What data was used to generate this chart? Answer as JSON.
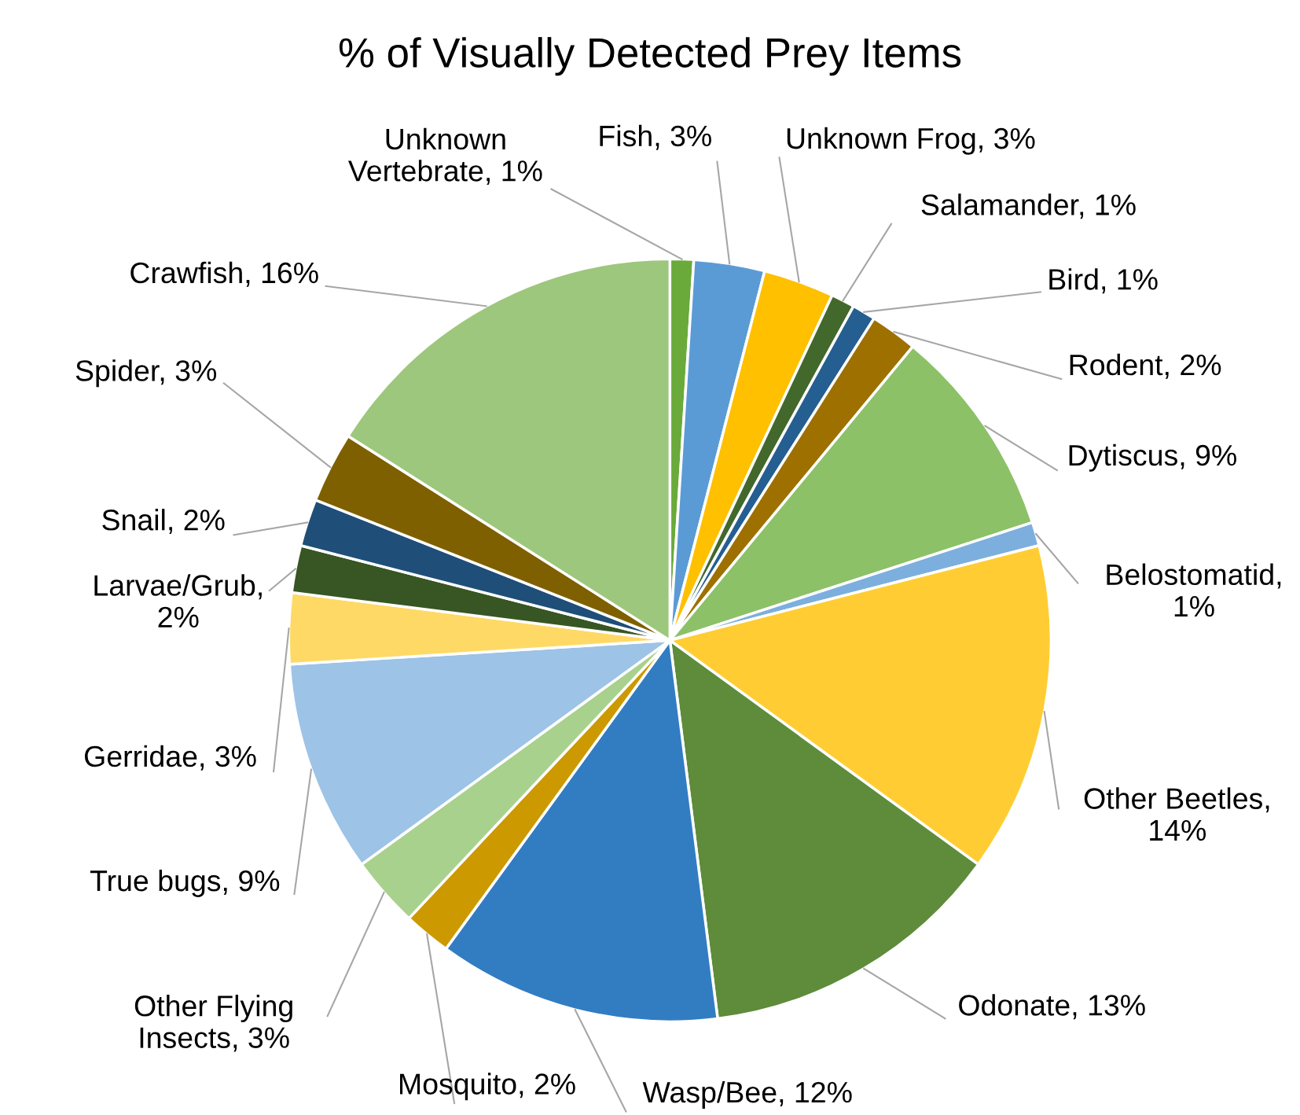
{
  "chart_data": {
    "type": "pie",
    "title": "% of Visually Detected Prey Items",
    "categories": [
      "Unknown\nVertebrate, 1%",
      "Fish, 3%",
      "Unknown Frog, 3%",
      "Salamander, 1%",
      "Bird, 1%",
      "Rodent, 2%",
      "Dytiscus, 9%",
      "Belostomatid,\n1%",
      "Other Beetles,\n14%",
      "Odonate, 13%",
      "Wasp/Bee, 12%",
      "Mosquito, 2%",
      "Other Flying\nInsects, 3%",
      "True bugs, 9%",
      "Gerridae, 3%",
      "Larvae/Grub,\n2%",
      "Snail, 2%",
      "Spider, 3%",
      "Crawfish, 16%"
    ],
    "values": [
      1,
      3,
      3,
      1,
      1,
      2,
      9,
      1,
      14,
      13,
      12,
      2,
      3,
      9,
      3,
      2,
      2,
      3,
      16
    ],
    "colors": [
      "#6aaa3a",
      "#5b9bd5",
      "#ffc000",
      "#43682b",
      "#255e91",
      "#9e7000",
      "#8cc168",
      "#7cafdd",
      "#ffcd33",
      "#5e8c3a",
      "#327dc2",
      "#cc9900",
      "#a9d18e",
      "#9dc3e6",
      "#ffd966",
      "#375623",
      "#1f4e79",
      "#7f6000",
      "#9dc77c"
    ]
  }
}
